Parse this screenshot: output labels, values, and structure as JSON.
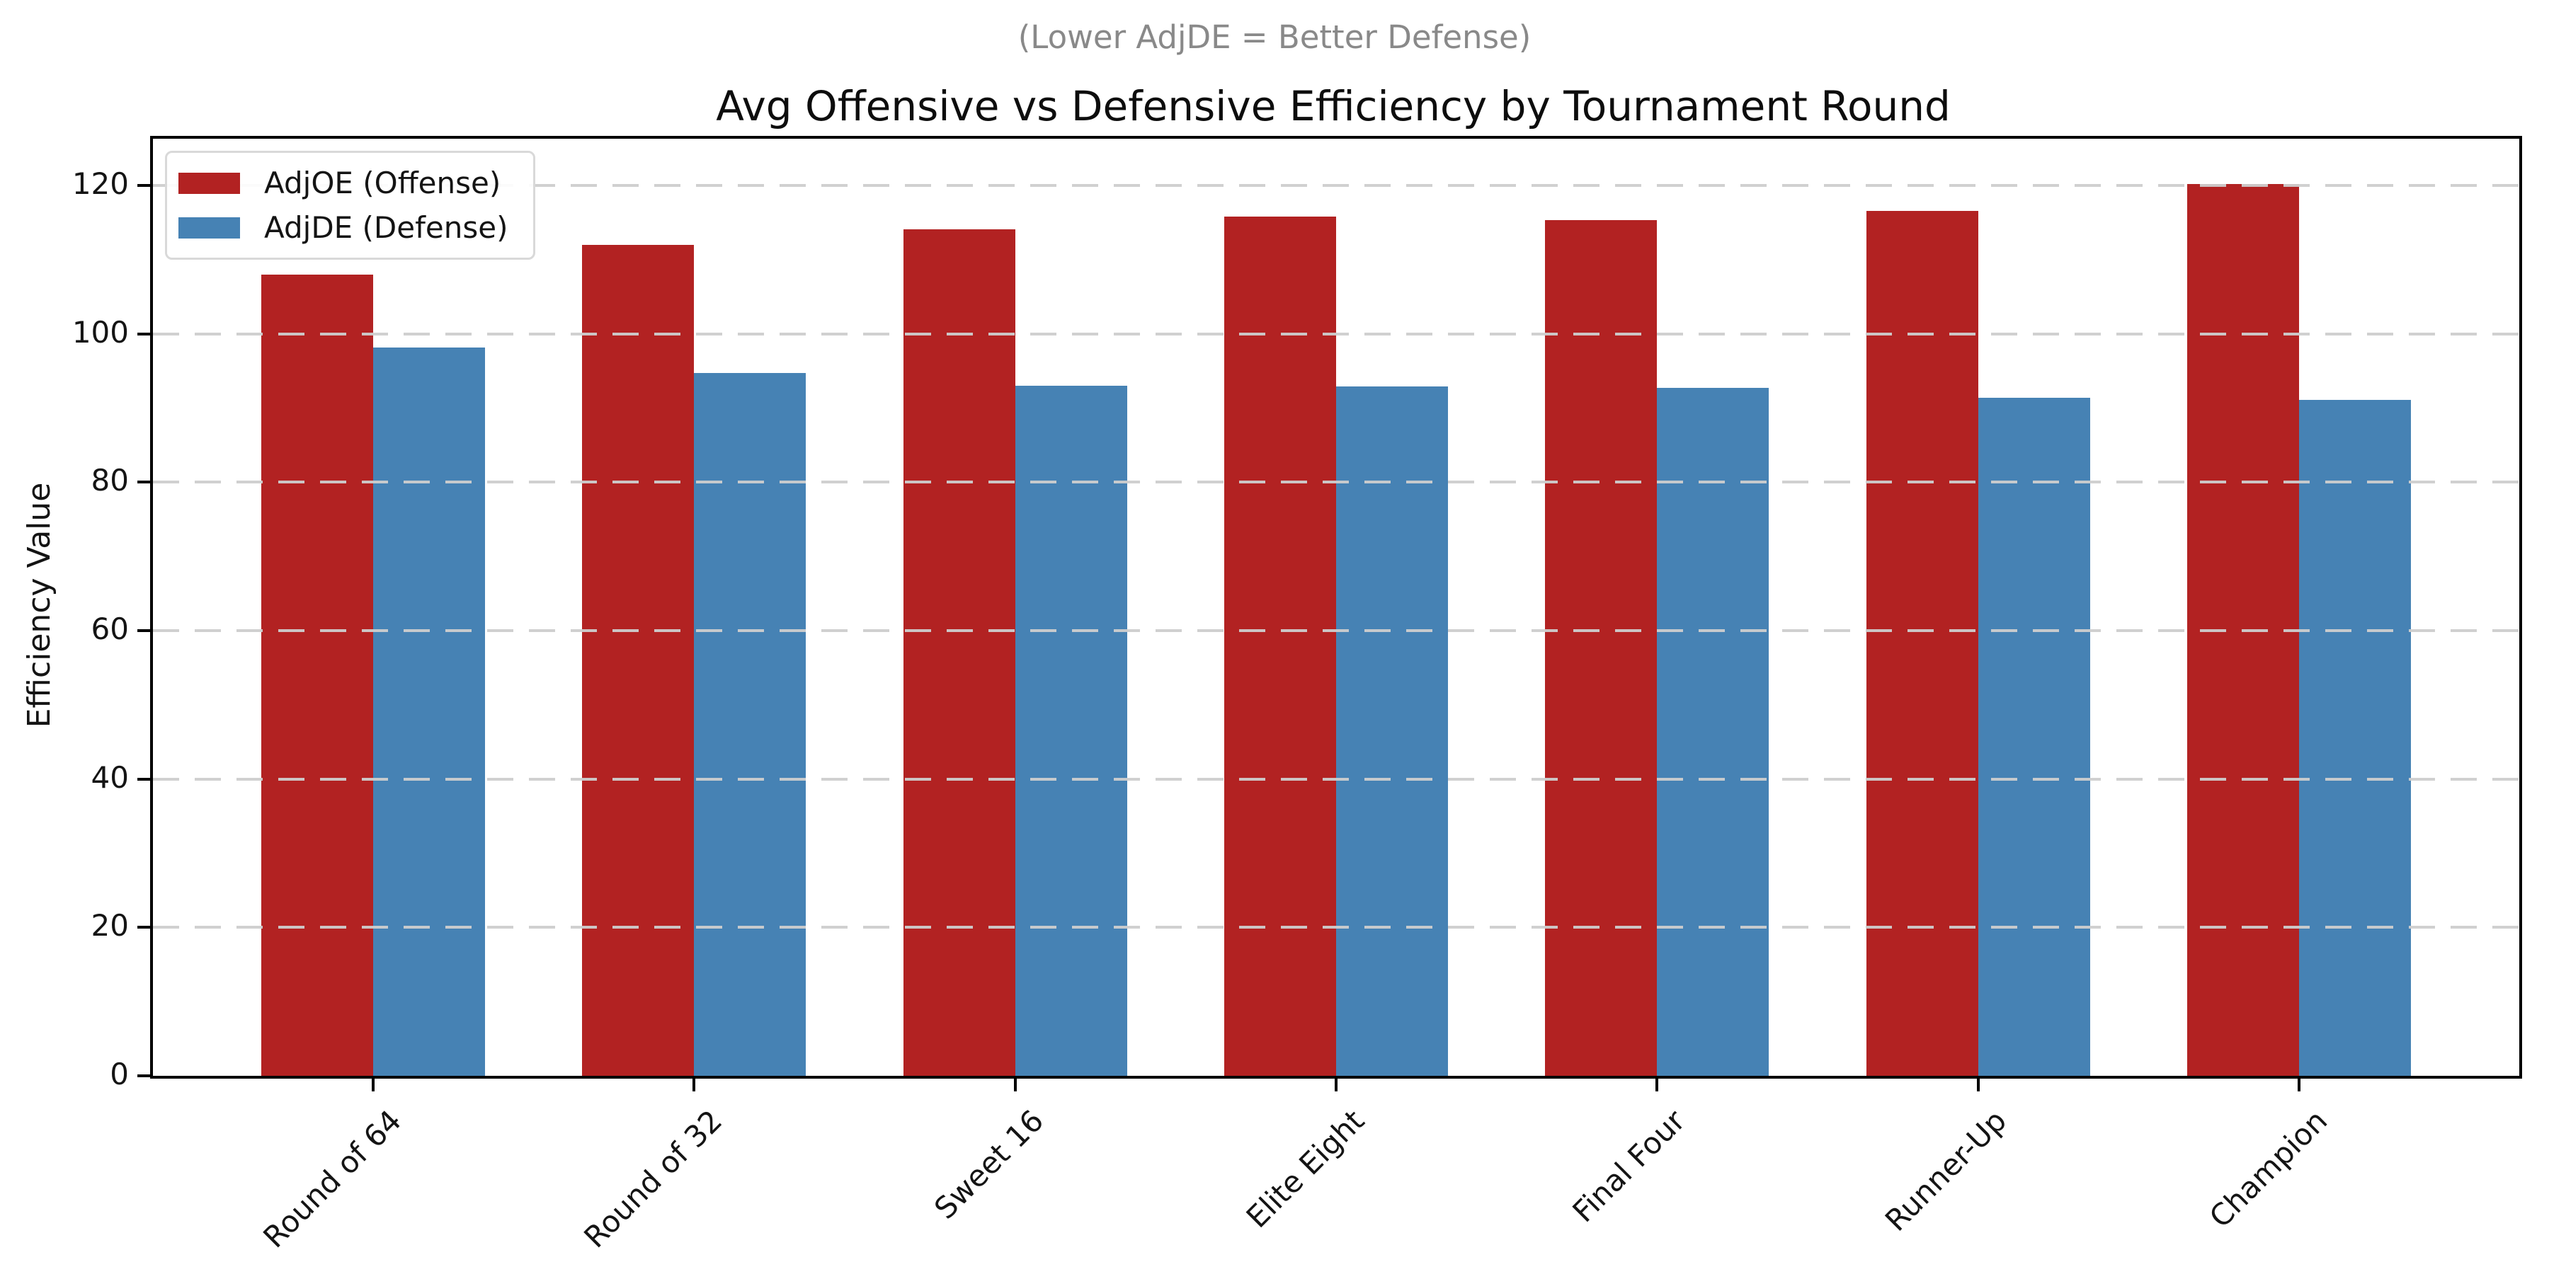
{
  "figure": {
    "subtitle": "(Lower AdjDE = Better Defense)",
    "title": "Avg Offensive vs Defensive Efficiency by Tournament Round",
    "ylabel": "Efficiency Value"
  },
  "legend": {
    "items": [
      {
        "label": "AdjOE (Offense)",
        "color": "#b22222"
      },
      {
        "label": "AdjDE (Defense)",
        "color": "#4682b4"
      }
    ]
  },
  "chart_data": {
    "type": "bar",
    "title": "Avg Offensive vs Defensive Efficiency by Tournament Round",
    "subtitle": "(Lower AdjDE = Better Defense)",
    "xlabel": "",
    "ylabel": "Efficiency Value",
    "categories": [
      "Round of 64",
      "Round of 32",
      "Sweet 16",
      "Elite Eight",
      "Final Four",
      "Runner-Up",
      "Champion"
    ],
    "series": [
      {
        "name": "AdjOE (Offense)",
        "color": "#b22222",
        "values": [
          108.0,
          112.0,
          114.1,
          115.8,
          115.3,
          116.6,
          120.2
        ]
      },
      {
        "name": "AdjDE (Defense)",
        "color": "#4682b4",
        "values": [
          98.2,
          94.7,
          93.0,
          92.9,
          92.7,
          91.4,
          91.1
        ]
      }
    ],
    "ylim": [
      0,
      126.3
    ],
    "yticks": [
      0,
      20,
      40,
      60,
      80,
      100,
      120
    ],
    "grid": "dashed horizontal",
    "grid_color": "#cecece",
    "legend_position": "upper left",
    "bar_group_offset": "offense left of tick, defense right of tick",
    "xticklabel_rotation": 45
  }
}
